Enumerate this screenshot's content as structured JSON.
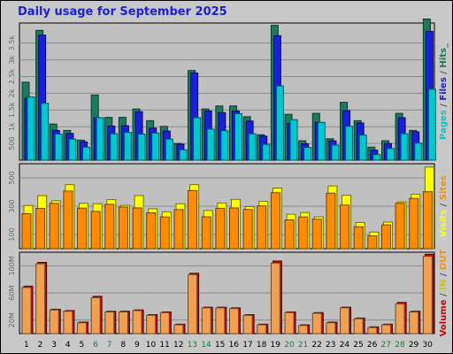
{
  "title": "Daily usage for September 2025",
  "chart_data": {
    "type": "bar",
    "title": "Daily usage for September 2025",
    "categories": [
      "1",
      "2",
      "3",
      "4",
      "5",
      "6",
      "7",
      "8",
      "9",
      "10",
      "11",
      "12",
      "13",
      "14",
      "15",
      "16",
      "17",
      "18",
      "19",
      "20",
      "21",
      "22",
      "23",
      "24",
      "25",
      "26",
      "27",
      "28",
      "29",
      "30"
    ],
    "weekend_days": [
      "6",
      "7",
      "13",
      "14",
      "20",
      "21",
      "27",
      "28"
    ],
    "panels": [
      {
        "id": "hits",
        "ylabel_parts": [
          {
            "text": "Pages",
            "color": "#00c8d2"
          },
          {
            "text": " / ",
            "color": "#555555"
          },
          {
            "text": "Files",
            "color": "#1a20d6"
          },
          {
            "text": " / ",
            "color": "#555555"
          },
          {
            "text": "Hits",
            "color": "#1e7a5f"
          },
          {
            "text": "_",
            "color": "#555555"
          }
        ],
        "ticks": [
          {
            "value": 500,
            "label": "500"
          },
          {
            "value": 1000,
            "label": "1k"
          },
          {
            "value": 1500,
            "label": "1.5k"
          },
          {
            "value": 2000,
            "label": "2k"
          },
          {
            "value": 2500,
            "label": "2.5k"
          },
          {
            "value": 3000,
            "label": "3k"
          },
          {
            "value": 3500,
            "label": "3.5k"
          }
        ],
        "ylim": [
          0,
          4100
        ],
        "series": [
          {
            "name": "Hits",
            "color": "#1e7a5f",
            "values": [
              2330,
              3880,
              1080,
              890,
              600,
              1950,
              1280,
              1280,
              1530,
              1180,
              1010,
              500,
              2680,
              1530,
              1620,
              1620,
              1300,
              760,
              4030,
              1370,
              580,
              1400,
              640,
              1730,
              1180,
              390,
              580,
              1400,
              890,
              4220
            ]
          },
          {
            "name": "Files",
            "color": "#1a20d6",
            "values": [
              1850,
              3740,
              890,
              800,
              550,
              1270,
              1020,
              1030,
              1450,
              960,
              870,
              480,
              2610,
              1470,
              1420,
              1470,
              1170,
              720,
              3720,
              1100,
              490,
              1130,
              580,
              1480,
              1110,
              300,
              500,
              1270,
              850,
              3850
            ]
          },
          {
            "name": "Pages",
            "color": "#00c8d2",
            "values": [
              1890,
              1700,
              780,
              630,
              390,
              1270,
              790,
              830,
              780,
              810,
              630,
              310,
              1270,
              930,
              880,
              1390,
              790,
              470,
              2220,
              1210,
              380,
              1130,
              450,
              1010,
              750,
              170,
              350,
              790,
              510,
              2120
            ]
          }
        ]
      },
      {
        "id": "visits",
        "ylabel_parts": [
          {
            "text": "Visits",
            "color": "#ffff00"
          },
          {
            "text": " / ",
            "color": "#555555"
          },
          {
            "text": "Sites",
            "color": "#ff8c00"
          }
        ],
        "ticks": [
          {
            "value": 100,
            "label": "100"
          },
          {
            "value": 300,
            "label": "300"
          },
          {
            "value": 500,
            "label": "500"
          }
        ],
        "ylim": [
          0,
          600
        ],
        "series": [
          {
            "name": "Visits",
            "color": "#ffff00",
            "values": [
              305,
              375,
              338,
              452,
              320,
              318,
              347,
              306,
              375,
              282,
              260,
              317,
              452,
              270,
              323,
              348,
              297,
              335,
              428,
              243,
              255,
              225,
              443,
              377,
              185,
              117,
              188,
              330,
              385,
              576
            ]
          },
          {
            "name": "Sites",
            "color": "#ff8c00",
            "values": [
              247,
              284,
              320,
              407,
              286,
              263,
              313,
              294,
              288,
              253,
              224,
              276,
              410,
              225,
              285,
              288,
              277,
              302,
              395,
              203,
              224,
              209,
              392,
              308,
              155,
              90,
              168,
              320,
              355,
              402
            ]
          }
        ]
      },
      {
        "id": "volume",
        "ylabel_parts": [
          {
            "text": "Volume",
            "color": "#d00000"
          },
          {
            "text": " / ",
            "color": "#555555"
          },
          {
            "text": "IN",
            "color": "#c8c800"
          },
          {
            "text": " / ",
            "color": "#555555"
          },
          {
            "text": "OUT",
            "color": "#ff8c00"
          }
        ],
        "ticks": [
          {
            "value": 20,
            "label": "20M"
          },
          {
            "value": 60,
            "label": "60M"
          },
          {
            "value": 100,
            "label": "100M"
          }
        ],
        "ylim": [
          0,
          120
        ],
        "series": [
          {
            "name": "Volume",
            "color": "#d00000",
            "values": [
              70,
              105,
              36,
              34,
              17,
              55,
              33,
              33,
              35,
              28,
              32,
              14,
              89,
              39,
              39,
              38,
              28,
              14,
              107,
              32,
              13,
              31,
              17,
              39,
              23,
              10,
              14,
              46,
              33,
              117
            ]
          },
          {
            "name": "OUT",
            "color": "#f0a050",
            "values": [
              68,
              103,
              35,
              33,
              16,
              53,
              32,
              32,
              34,
              27,
              31,
              13,
              87,
              38,
              38,
              37,
              27,
              13,
              104,
              31,
              12,
              30,
              16,
              38,
              22,
              9,
              13,
              44,
              32,
              114
            ]
          }
        ]
      }
    ]
  }
}
